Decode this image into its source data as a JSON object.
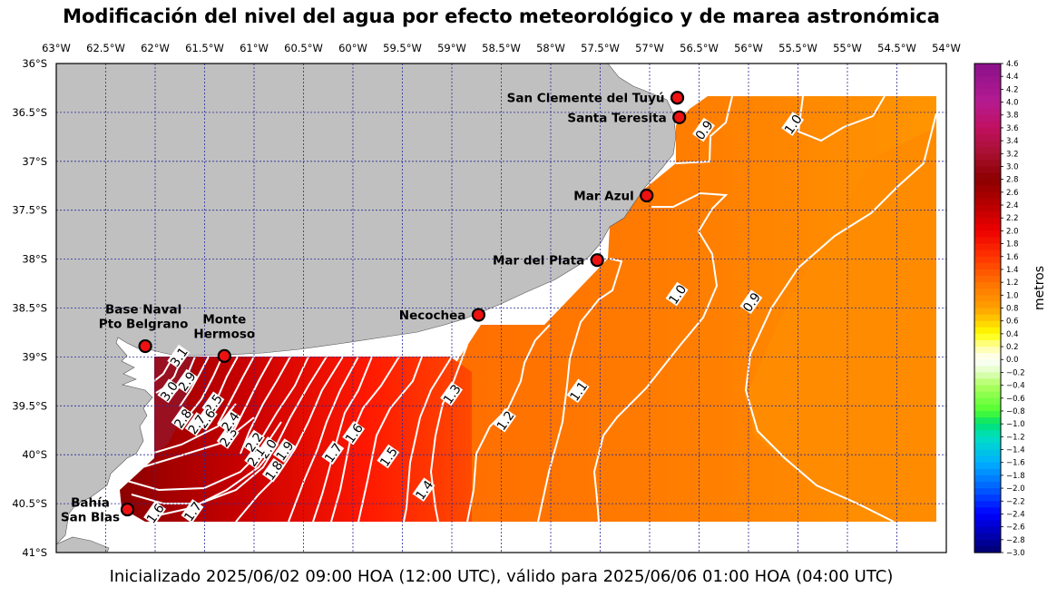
{
  "title": "Modificación del nivel del agua por efecto meteorológico y de marea astronómica",
  "footer": "Inicializado 2025/06/02 09:00 HOA (12:00 UTC), válido para 2025/06/06 01:00 HOA (04:00 UTC)",
  "colorbar": {
    "label": "metros",
    "min": -3.0,
    "max": 4.6,
    "step": 0.2,
    "tick_labels": [
      "4.6",
      "4.4",
      "4.2",
      "4.0",
      "3.8",
      "3.6",
      "3.4",
      "3.2",
      "3.0",
      "2.8",
      "2.6",
      "2.4",
      "2.2",
      "2.0",
      "1.8",
      "1.6",
      "1.4",
      "1.2",
      "1.0",
      "0.8",
      "0.6",
      "0.4",
      "0.2",
      "0.0",
      "−0.2",
      "−0.4",
      "−0.6",
      "−0.8",
      "−1.0",
      "−1.2",
      "−1.4",
      "−1.6",
      "−1.8",
      "−2.0",
      "−2.2",
      "−2.4",
      "−2.6",
      "−2.8",
      "−3.0"
    ],
    "color_stops": [
      {
        "v": 4.6,
        "c": "#8a108a"
      },
      {
        "v": 4.0,
        "c": "#b41b90"
      },
      {
        "v": 3.6,
        "c": "#c01060"
      },
      {
        "v": 3.2,
        "c": "#a81030"
      },
      {
        "v": 2.8,
        "c": "#8b0000"
      },
      {
        "v": 2.4,
        "c": "#b80000"
      },
      {
        "v": 2.0,
        "c": "#ee0000"
      },
      {
        "v": 1.6,
        "c": "#ff3300"
      },
      {
        "v": 1.2,
        "c": "#ff7000"
      },
      {
        "v": 0.8,
        "c": "#ffa000"
      },
      {
        "v": 0.6,
        "c": "#ffcc00"
      },
      {
        "v": 0.4,
        "c": "#ffff00"
      },
      {
        "v": 0.2,
        "c": "#ffffa0"
      },
      {
        "v": 0.0,
        "c": "#ffffff"
      },
      {
        "v": -0.2,
        "c": "#e0ffc0"
      },
      {
        "v": -0.4,
        "c": "#b0ff60"
      },
      {
        "v": -0.8,
        "c": "#50ff30"
      },
      {
        "v": -1.0,
        "c": "#00e070"
      },
      {
        "v": -1.2,
        "c": "#00e0c0"
      },
      {
        "v": -1.6,
        "c": "#00b0ff"
      },
      {
        "v": -2.0,
        "c": "#0060ff"
      },
      {
        "v": -2.4,
        "c": "#0000ff"
      },
      {
        "v": -3.0,
        "c": "#000070"
      }
    ]
  },
  "axes": {
    "lon_labels": [
      "63°W",
      "62.5°W",
      "62°W",
      "61.5°W",
      "61°W",
      "60.5°W",
      "60°W",
      "59.5°W",
      "59°W",
      "58.5°W",
      "58°W",
      "57.5°W",
      "57°W",
      "56.5°W",
      "56°W",
      "55.5°W",
      "55°W",
      "54.5°W",
      "54°W"
    ],
    "lat_labels": [
      "36°S",
      "36.5°S",
      "37°S",
      "37.5°S",
      "38°S",
      "38.5°S",
      "39°S",
      "39.5°S",
      "40°S",
      "40.5°S",
      "41°S"
    ],
    "lon_range": [
      -63,
      -54
    ],
    "lat_range": [
      -41,
      -36
    ]
  },
  "colors": {
    "land": "#c0c0c0",
    "grid": "#2a2a9a",
    "station_fill": "#ee1111"
  },
  "stations": [
    {
      "name": "San Clemente del Tuyú",
      "lon": -56.72,
      "lat": -36.35,
      "label_lines": [
        "San Clemente del Tuyú"
      ],
      "label_pos": "left"
    },
    {
      "name": "Santa Teresita",
      "lon": -56.7,
      "lat": -36.55,
      "label_lines": [
        "Santa Teresita"
      ],
      "label_pos": "left"
    },
    {
      "name": "Mar Azul",
      "lon": -57.03,
      "lat": -37.35,
      "label_lines": [
        "Mar Azul"
      ],
      "label_pos": "left"
    },
    {
      "name": "Mar del Plata",
      "lon": -57.53,
      "lat": -38.01,
      "label_lines": [
        "Mar del Plata"
      ],
      "label_pos": "left"
    },
    {
      "name": "Necochea",
      "lon": -58.73,
      "lat": -38.57,
      "label_lines": [
        "Necochea"
      ],
      "label_pos": "left"
    },
    {
      "name": "Base Naval Pto Belgrano",
      "lon": -62.1,
      "lat": -38.89,
      "label_lines": [
        "Base Naval",
        "Pto Belgrano"
      ],
      "label_pos": "above"
    },
    {
      "name": "Monte Hermoso",
      "lon": -61.3,
      "lat": -38.99,
      "label_lines": [
        "Monte",
        "Hermoso"
      ],
      "label_pos": "above"
    },
    {
      "name": "Bahía San Blas",
      "lon": -62.28,
      "lat": -40.56,
      "label_lines": [
        "Bahía",
        "San Blas"
      ],
      "label_pos": "left"
    }
  ],
  "contour_labels": [
    {
      "text": "0.9",
      "lon": -56.45,
      "lat": -36.68
    },
    {
      "text": "1.0",
      "lon": -55.55,
      "lat": -36.62
    },
    {
      "text": "1.0",
      "lon": -56.72,
      "lat": -38.36
    },
    {
      "text": "0.9",
      "lon": -55.97,
      "lat": -38.44
    },
    {
      "text": "1.1",
      "lon": -57.72,
      "lat": -39.35
    },
    {
      "text": "1.2",
      "lon": -58.46,
      "lat": -39.65
    },
    {
      "text": "1.3",
      "lon": -59.0,
      "lat": -39.38
    },
    {
      "text": "1.4",
      "lon": -59.28,
      "lat": -40.36
    },
    {
      "text": "1.5",
      "lon": -59.64,
      "lat": -40.02
    },
    {
      "text": "1.6",
      "lon": -59.99,
      "lat": -39.78
    },
    {
      "text": "1.7",
      "lon": -60.2,
      "lat": -39.98
    },
    {
      "text": "1.6",
      "lon": -62.0,
      "lat": -40.6
    },
    {
      "text": "1.7",
      "lon": -61.62,
      "lat": -40.58
    },
    {
      "text": "1.8",
      "lon": -60.8,
      "lat": -40.16
    },
    {
      "text": "1.9",
      "lon": -60.69,
      "lat": -39.96
    },
    {
      "text": "2.0",
      "lon": -60.86,
      "lat": -39.94
    },
    {
      "text": "2.1",
      "lon": -60.98,
      "lat": -40.02
    },
    {
      "text": "2.2",
      "lon": -61.0,
      "lat": -39.87
    },
    {
      "text": "2.3",
      "lon": -61.26,
      "lat": -39.82
    },
    {
      "text": "2.4",
      "lon": -61.24,
      "lat": -39.66
    },
    {
      "text": "2.5",
      "lon": -61.41,
      "lat": -39.48
    },
    {
      "text": "2.6",
      "lon": -61.48,
      "lat": -39.63
    },
    {
      "text": "2.7",
      "lon": -61.58,
      "lat": -39.69
    },
    {
      "text": "2.8",
      "lon": -61.72,
      "lat": -39.63
    },
    {
      "text": "2.9",
      "lon": -61.68,
      "lat": -39.25
    },
    {
      "text": "3.0",
      "lon": -61.86,
      "lat": -39.35
    },
    {
      "text": "3.1",
      "lon": -61.76,
      "lat": -39.0
    }
  ]
}
